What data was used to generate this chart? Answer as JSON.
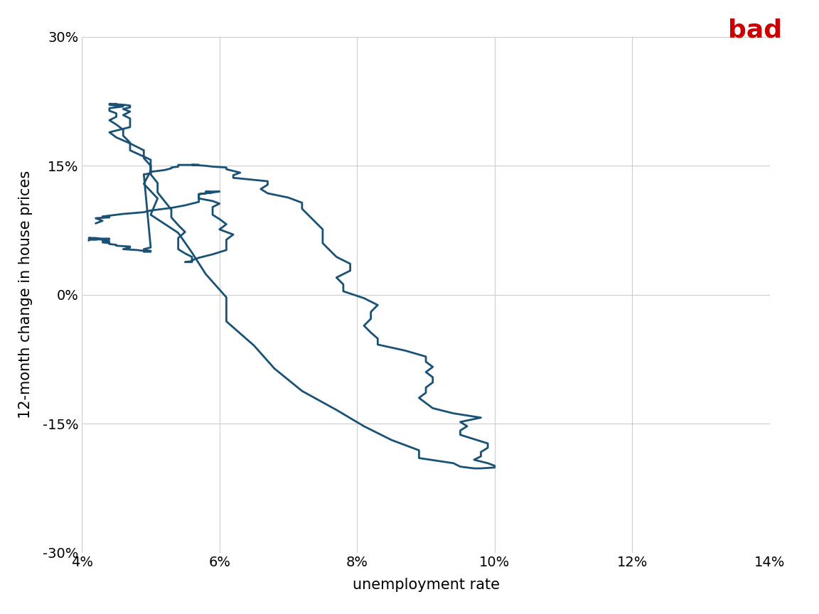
{
  "title": "",
  "bad_label": "bad",
  "xlabel": "unemployment rate",
  "ylabel": "12-month change in house prices",
  "xlim": [
    0.04,
    0.14
  ],
  "ylim": [
    -0.3,
    0.3
  ],
  "xticks": [
    0.04,
    0.06,
    0.08,
    0.1,
    0.12,
    0.14
  ],
  "yticks": [
    -0.3,
    -0.15,
    0.0,
    0.15,
    0.3
  ],
  "xticklabels": [
    "4%",
    "6%",
    "8%",
    "10%",
    "12%",
    "14%"
  ],
  "yticklabels": [
    "-30%",
    "-15%",
    "0%",
    "15%",
    "30%"
  ],
  "line_color": "#1a5276",
  "line_width": 2.0,
  "background_color": "#ffffff",
  "grid_color": "#cccccc",
  "bad_color": "#cc0000",
  "red_bar_color": "#cc0000",
  "unemployment": [
    4.2,
    4.3,
    4.2,
    4.4,
    4.3,
    4.5,
    4.6,
    4.9,
    5.0,
    5.3,
    5.5,
    5.7,
    5.7,
    5.7,
    5.7,
    5.9,
    6.0,
    5.8,
    5.9,
    5.7,
    5.7,
    5.7,
    5.9,
    6.0,
    5.9,
    5.9,
    5.9,
    6.0,
    6.1,
    6.0,
    6.2,
    6.1,
    6.1,
    6.1,
    5.9,
    5.7,
    5.6,
    5.6,
    5.5,
    5.6,
    5.6,
    5.6,
    5.5,
    5.4,
    5.4,
    5.4,
    5.5,
    5.4,
    5.3,
    5.3,
    5.2,
    5.1,
    5.1,
    5.0,
    5.0,
    4.9,
    4.9,
    4.7,
    4.5,
    4.4,
    4.7,
    4.7,
    4.7,
    4.6,
    4.7,
    4.6,
    4.7,
    4.7,
    4.6,
    4.4,
    4.5,
    4.4,
    4.6,
    4.4,
    4.4,
    4.5,
    4.5,
    4.4,
    4.5,
    4.6,
    4.6,
    4.7,
    4.7,
    5.0,
    5.0,
    4.9,
    5.1,
    5.0,
    5.4,
    5.6,
    5.8,
    6.1,
    6.1,
    6.5,
    6.8,
    7.2,
    7.7,
    8.1,
    8.5,
    8.9,
    8.9,
    9.4,
    9.5,
    9.7,
    9.8,
    10.0,
    10.0,
    9.9,
    9.7,
    9.8,
    9.8,
    9.9,
    9.9,
    9.7,
    9.5,
    9.5,
    9.6,
    9.5,
    9.8,
    9.4,
    9.1,
    9.0,
    8.9,
    9.0,
    9.0,
    9.1,
    9.1,
    9.0,
    9.1,
    9.0,
    9.0,
    8.7,
    8.3,
    8.3,
    8.2,
    8.1,
    8.2,
    8.2,
    8.3,
    8.1,
    7.8,
    7.8,
    7.7,
    7.9,
    7.9,
    7.7,
    7.6,
    7.5,
    7.5,
    7.5,
    7.4,
    7.3,
    7.2,
    7.2,
    7.0,
    6.7,
    6.6,
    6.7,
    6.7,
    6.2,
    6.2,
    6.3,
    6.2,
    6.1,
    6.1,
    5.9,
    5.8,
    5.6,
    5.7,
    5.5,
    5.4,
    5.4,
    5.4,
    5.3,
    5.3,
    5.2,
    5.1,
    5.0,
    5.0,
    4.9,
    5.0,
    4.9,
    4.9,
    5.0,
    5.0,
    4.9,
    4.9,
    4.9,
    4.9,
    4.8,
    4.6,
    4.7,
    4.7,
    4.5,
    4.5,
    4.4,
    4.4,
    4.3,
    4.4,
    4.3,
    4.3,
    4.2,
    4.1,
    4.1,
    4.1,
    4.1,
    4.2,
    4.2,
    4.3,
    4.3,
    4.4,
    4.3,
    4.2,
    4.1,
    4.1,
    4.1
  ],
  "house_price_change": [
    0.083,
    0.086,
    0.089,
    0.09,
    0.091,
    0.093,
    0.094,
    0.096,
    0.098,
    0.101,
    0.104,
    0.108,
    0.111,
    0.114,
    0.117,
    0.119,
    0.12,
    0.12,
    0.119,
    0.117,
    0.115,
    0.112,
    0.109,
    0.106,
    0.102,
    0.098,
    0.093,
    0.088,
    0.082,
    0.076,
    0.07,
    0.064,
    0.058,
    0.052,
    0.047,
    0.043,
    0.04,
    0.038,
    0.038,
    0.039,
    0.041,
    0.044,
    0.048,
    0.053,
    0.059,
    0.066,
    0.073,
    0.081,
    0.09,
    0.099,
    0.109,
    0.119,
    0.13,
    0.14,
    0.15,
    0.159,
    0.168,
    0.176,
    0.183,
    0.189,
    0.195,
    0.2,
    0.205,
    0.209,
    0.213,
    0.216,
    0.218,
    0.22,
    0.221,
    0.222,
    0.222,
    0.221,
    0.219,
    0.217,
    0.214,
    0.211,
    0.207,
    0.203,
    0.198,
    0.192,
    0.185,
    0.177,
    0.168,
    0.157,
    0.144,
    0.129,
    0.112,
    0.093,
    0.072,
    0.049,
    0.024,
    -0.003,
    -0.031,
    -0.059,
    -0.086,
    -0.112,
    -0.134,
    -0.153,
    -0.169,
    -0.181,
    -0.19,
    -0.196,
    -0.2,
    -0.202,
    -0.202,
    -0.201,
    -0.199,
    -0.196,
    -0.192,
    -0.188,
    -0.183,
    -0.178,
    -0.173,
    -0.168,
    -0.163,
    -0.158,
    -0.153,
    -0.148,
    -0.143,
    -0.138,
    -0.132,
    -0.126,
    -0.12,
    -0.114,
    -0.108,
    -0.102,
    -0.096,
    -0.09,
    -0.084,
    -0.078,
    -0.072,
    -0.065,
    -0.058,
    -0.051,
    -0.044,
    -0.036,
    -0.028,
    -0.02,
    -0.012,
    -0.004,
    0.004,
    0.012,
    0.02,
    0.028,
    0.036,
    0.044,
    0.052,
    0.06,
    0.068,
    0.076,
    0.084,
    0.092,
    0.1,
    0.107,
    0.113,
    0.118,
    0.123,
    0.128,
    0.132,
    0.136,
    0.139,
    0.142,
    0.144,
    0.146,
    0.148,
    0.149,
    0.15,
    0.151,
    0.151,
    0.151,
    0.151,
    0.15,
    0.149,
    0.148,
    0.147,
    0.145,
    0.144,
    0.143,
    0.141,
    0.14,
    0.055,
    0.053,
    0.052,
    0.051,
    0.05,
    0.05,
    0.05,
    0.05,
    0.051,
    0.052,
    0.053,
    0.055,
    0.056,
    0.057,
    0.058,
    0.059,
    0.06,
    0.061,
    0.062,
    0.063,
    0.064,
    0.065,
    0.066,
    0.066,
    0.066,
    0.066,
    0.066,
    0.066,
    0.065,
    0.065,
    0.065,
    0.065,
    0.064,
    0.064,
    0.064,
    0.063
  ]
}
